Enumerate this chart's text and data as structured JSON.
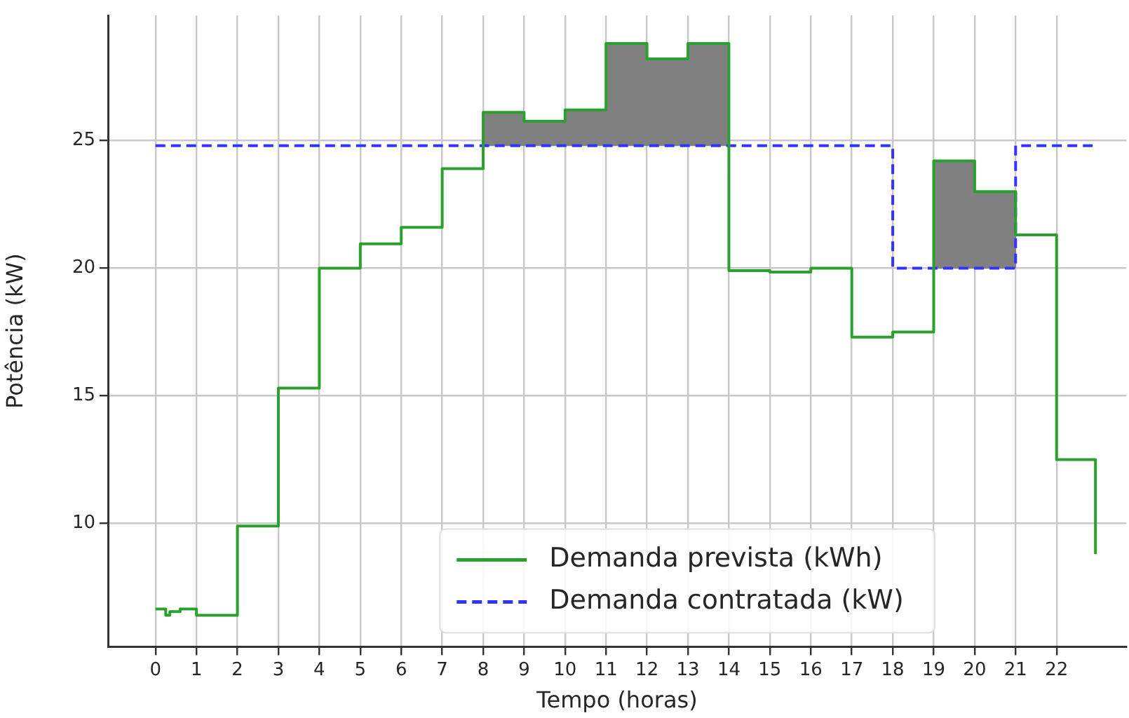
{
  "chart_data": {
    "type": "step",
    "xlabel": "Tempo (horas)",
    "ylabel": "Potência (kW)",
    "series": [
      {
        "type": "bar",
        "color": "#808080",
        "x": [
          8.5,
          9.5,
          10.5,
          11.5,
          12.5,
          13.5
        ],
        "base": [
          24.8,
          24.8,
          24.8,
          24.8,
          24.8,
          24.8
        ],
        "values": [
          1.3,
          0.95,
          1.4,
          4.0,
          3.4,
          4.0
        ]
      },
      {
        "type": "bar",
        "color": "#808080",
        "x": [
          19.5,
          20.5
        ],
        "base": [
          20,
          20
        ],
        "values": [
          4.2,
          3.0
        ]
      },
      {
        "name": "Demanda prevista (kWh)",
        "color": "#2ca02c",
        "line_style": "solid",
        "x": [
          0,
          0.25,
          0.35,
          0.6,
          1,
          2,
          3,
          4,
          5,
          6,
          7,
          8,
          9,
          10,
          11,
          12,
          13,
          14,
          15,
          16,
          17,
          18,
          19,
          20,
          21,
          22,
          22.95
        ],
        "values": [
          6.65,
          6.4,
          6.55,
          6.65,
          6.4,
          9.9,
          15.3,
          20.0,
          20.95,
          21.6,
          23.9,
          26.1,
          25.75,
          26.2,
          28.8,
          28.2,
          28.8,
          19.9,
          19.85,
          20.0,
          17.3,
          17.5,
          24.2,
          23.0,
          21.3,
          12.5,
          8.8
        ]
      },
      {
        "name": "Demanda contratada (kW)",
        "color": "#3333ff",
        "line_style": "dashed",
        "x": [
          0,
          18,
          21,
          22.9
        ],
        "values": [
          24.8,
          20,
          24.8,
          24.8
        ]
      }
    ],
    "xlim": [
      -1.16,
      23.7
    ],
    "xticks": [
      0,
      1,
      2,
      3,
      4,
      5,
      6,
      7,
      8,
      9,
      10,
      11,
      12,
      13,
      14,
      15,
      16,
      17,
      18,
      19,
      20,
      21,
      22
    ],
    "ylim": [
      5.17,
      29.9
    ],
    "yticks": [
      10,
      15,
      20,
      25
    ],
    "grid": true,
    "legend": "bottom"
  }
}
